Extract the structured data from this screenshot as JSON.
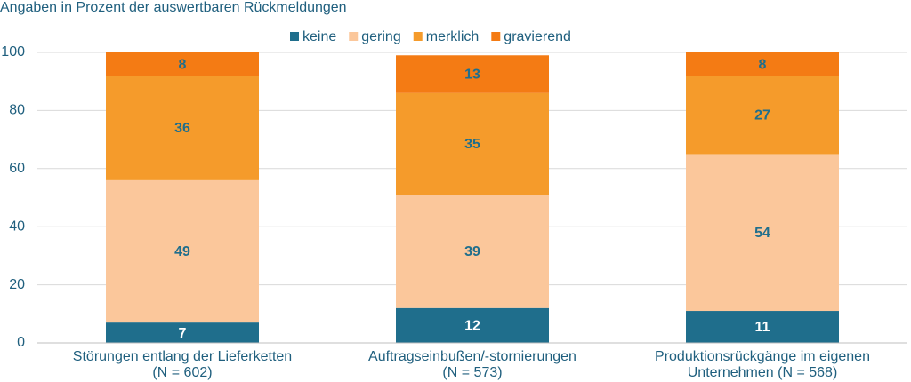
{
  "chart_data": {
    "type": "stacked-bar",
    "title": "Angaben in Prozent der auswertbaren Rückmeldungen",
    "categories": [
      [
        "Störungen entlang der Lieferketten",
        "(N = 602)"
      ],
      [
        "Auftragseinbußen/-stornierungen",
        "(N = 573)"
      ],
      [
        "Produktionsrückgänge im eigenen",
        "Unternehmen (N = 568)"
      ]
    ],
    "series": [
      {
        "name": "keine",
        "color": "#1f6e8c",
        "label_color": "#ffffff",
        "values": [
          7,
          12,
          11
        ]
      },
      {
        "name": "gering",
        "color": "#fbc79b",
        "label_color": "#1f6e8c",
        "values": [
          49,
          39,
          54
        ]
      },
      {
        "name": "merklich",
        "color": "#f59b2b",
        "label_color": "#1f6e8c",
        "values": [
          36,
          35,
          27
        ]
      },
      {
        "name": "gravierend",
        "color": "#f47b14",
        "label_color": "#1f6e8c",
        "values": [
          8,
          13,
          8
        ]
      }
    ],
    "ylim": [
      0,
      100
    ],
    "yticks": [
      0,
      20,
      40,
      60,
      80,
      100
    ],
    "grid": true
  }
}
